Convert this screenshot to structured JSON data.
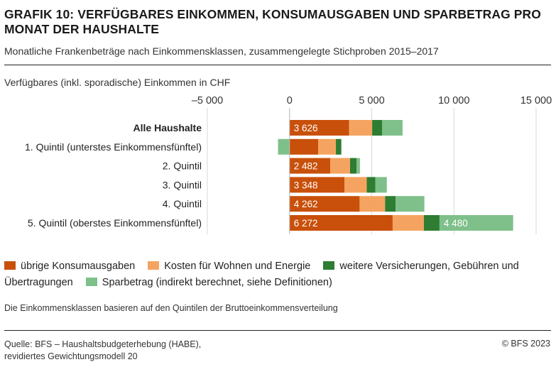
{
  "title": "GRAFIK 10: VERFÜGBARES EINKOMMEN, KONSUMAUSGABEN UND SPARBETRAG PRO MONAT DER HAUSHALTE",
  "subtitle": "Monatliche Frankenbeträge nach Einkommensklassen, zusammengelegte Stichproben 2015–2017",
  "legend": [
    {
      "label": "übrige Konsumausgaben",
      "color": "#c8500a"
    },
    {
      "label": "Kosten für Wohnen und Energie",
      "color": "#f4a460"
    },
    {
      "label": "weitere Versicherungen, Gebühren und Übertragungen",
      "color": "#2e7d32"
    },
    {
      "label": "Sparbetrag (indirekt berechnet, siehe Definitionen)",
      "color": "#7fc08a"
    }
  ],
  "note": "Die Einkommensklassen basieren auf den Quintilen der Bruttoeinkommensverteilung",
  "source_line1": "Quelle: BFS – Haushaltsbudgeterhebung (HABE),",
  "source_line2": "revidiertes Gewichtungsmodell 20",
  "copyright": "© BFS 2023",
  "chart_data": {
    "type": "bar",
    "orientation": "horizontal",
    "stacked": true,
    "xlabel": "Verfügbares (inkl. sporadische) Einkommen in CHF",
    "xlim": [
      -5000,
      15000
    ],
    "xticks": [
      -5000,
      0,
      5000,
      10000,
      15000
    ],
    "xtick_labels": [
      "–5 000",
      "0",
      "5 000",
      "10 000",
      "15 000"
    ],
    "grid": true,
    "categories": [
      "Alle Haushalte",
      "1. Quintil (unterstes Einkommensfünftel)",
      "2. Quintil",
      "3. Quintil",
      "4. Quintil",
      "5. Quintil (oberstes Einkommensfünftel)"
    ],
    "bold_categories": [
      "Alle Haushalte"
    ],
    "series": [
      {
        "name": "übrige Konsumausgaben",
        "color": "#c8500a",
        "values": [
          3626,
          1740,
          2482,
          3348,
          4262,
          6272
        ],
        "labels": [
          "3 626",
          "",
          "2 482",
          "3 348",
          "4 262",
          "6 272"
        ]
      },
      {
        "name": "Kosten für Wohnen und Energie",
        "color": "#f4a460",
        "values": [
          1400,
          1080,
          1200,
          1350,
          1550,
          1900
        ],
        "labels": [
          "",
          "",
          "",
          "",
          "",
          ""
        ]
      },
      {
        "name": "weitere Versicherungen, Gebühren und Übertragungen",
        "color": "#2e7d32",
        "values": [
          600,
          330,
          400,
          520,
          640,
          950
        ],
        "labels": [
          "",
          "",
          "",
          "",
          "",
          ""
        ]
      },
      {
        "name": "Sparbetrag (indirekt berechnet, siehe Definitionen)",
        "color": "#7fc08a",
        "values": [
          1250,
          -700,
          200,
          700,
          1750,
          4480
        ],
        "labels": [
          "",
          "",
          "",
          "",
          "",
          "4 480"
        ]
      }
    ]
  }
}
